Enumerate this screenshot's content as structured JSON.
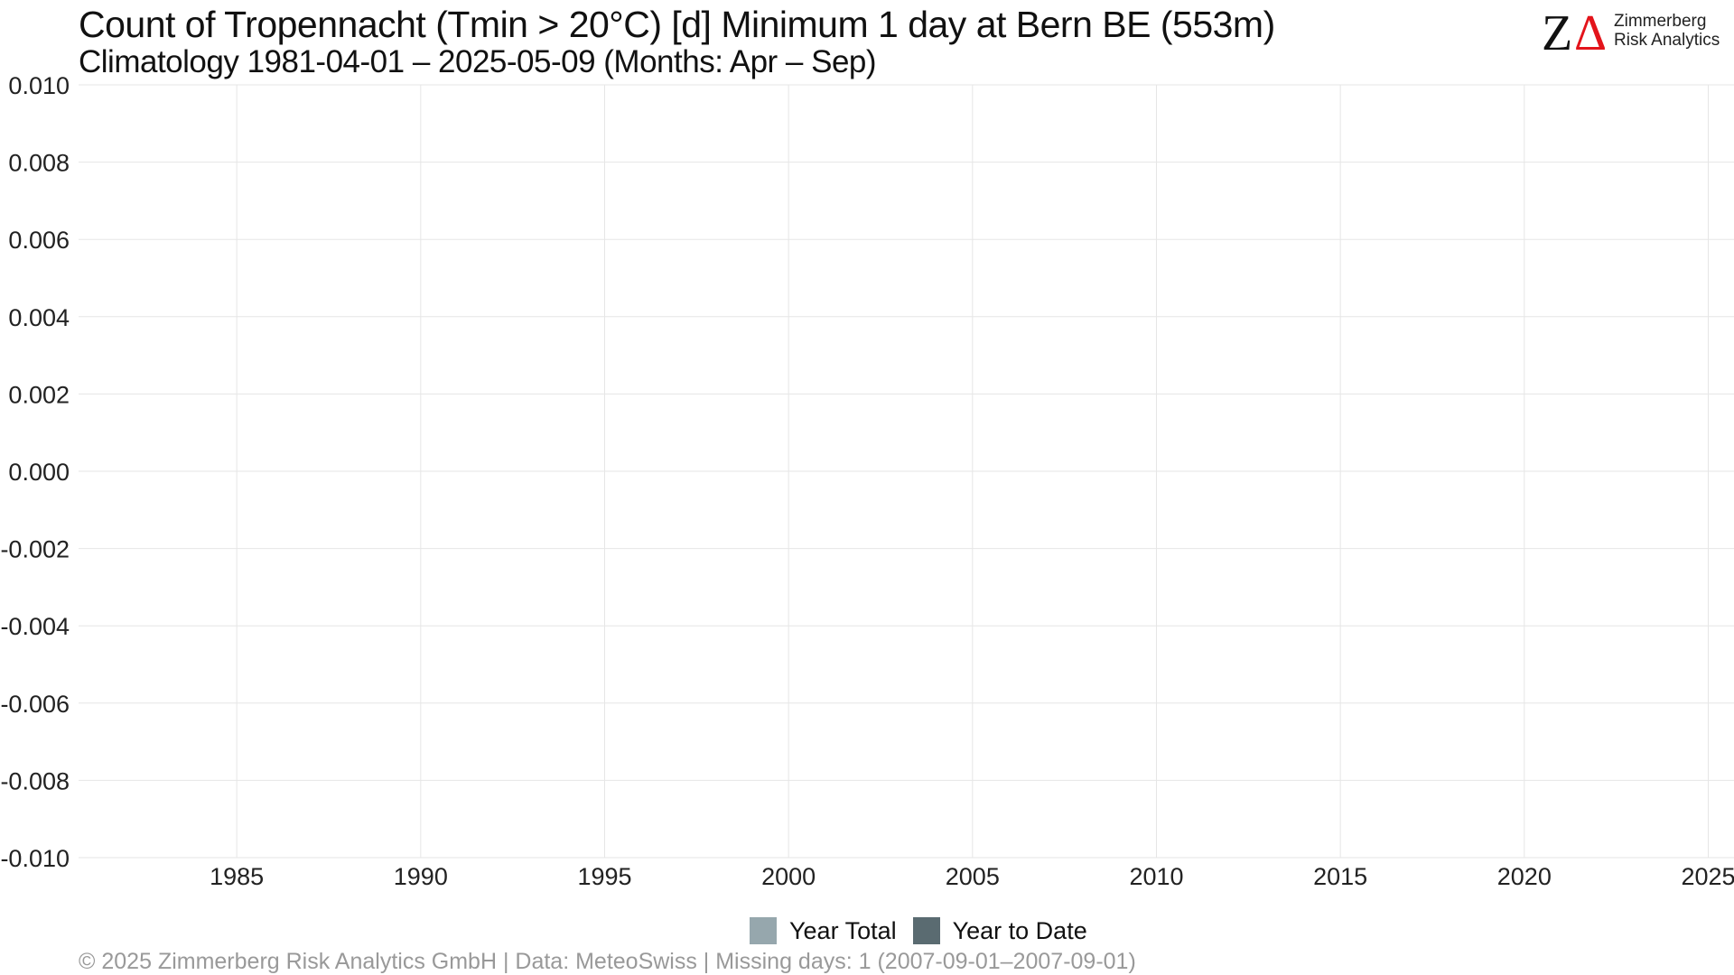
{
  "title": "Count of Tropennacht (Tmin > 20°C) [d] Minimum 1 day at Bern  BE (553m)",
  "subtitle": "Climatology 1981-04-01 – 2025-05-09 (Months: Apr – Sep)",
  "logo": {
    "mark_z": "Z",
    "mark_delta": "Δ",
    "line1": "Zimmerberg",
    "line2": "Risk Analytics",
    "mark_color": "#111111",
    "accent_color": "#e3141b"
  },
  "caption": "©  2025 Zimmerberg Risk Analytics GmbH | Data: MeteoSwiss | Missing days: 1 (2007-09-01–2007-09-01)",
  "legend": [
    {
      "label": "Year Total",
      "color": "#96a7ad"
    },
    {
      "label": "Year to Date",
      "color": "#5a6b71"
    }
  ],
  "chart_data": {
    "type": "bar",
    "title": "Count of Tropennacht (Tmin > 20°C) [d] Minimum 1 day at Bern  BE (553m)",
    "subtitle": "Climatology 1981-04-01 – 2025-05-09 (Months: Apr – Sep)",
    "xlabel": "",
    "ylabel": "",
    "xlim": [
      1980.7,
      2025.7
    ],
    "ylim": [
      -0.01,
      0.01
    ],
    "x_ticks": [
      1985,
      1990,
      1995,
      2000,
      2005,
      2010,
      2015,
      2020,
      2025
    ],
    "y_ticks": [
      0.01,
      0.008,
      0.006,
      0.004,
      0.002,
      0.0,
      -0.002,
      -0.004,
      -0.006,
      -0.008,
      -0.01
    ],
    "y_tick_labels": [
      "0.010",
      "0.008",
      "0.006",
      "0.004",
      "0.002",
      "0.000",
      "-0.002",
      "-0.004",
      "-0.006",
      "-0.008",
      "-0.010"
    ],
    "grid": true,
    "legend_position": "bottom",
    "series": [
      {
        "name": "Year Total",
        "color": "#96a7ad",
        "values": []
      },
      {
        "name": "Year to Date",
        "color": "#5a6b71",
        "values": []
      }
    ]
  }
}
